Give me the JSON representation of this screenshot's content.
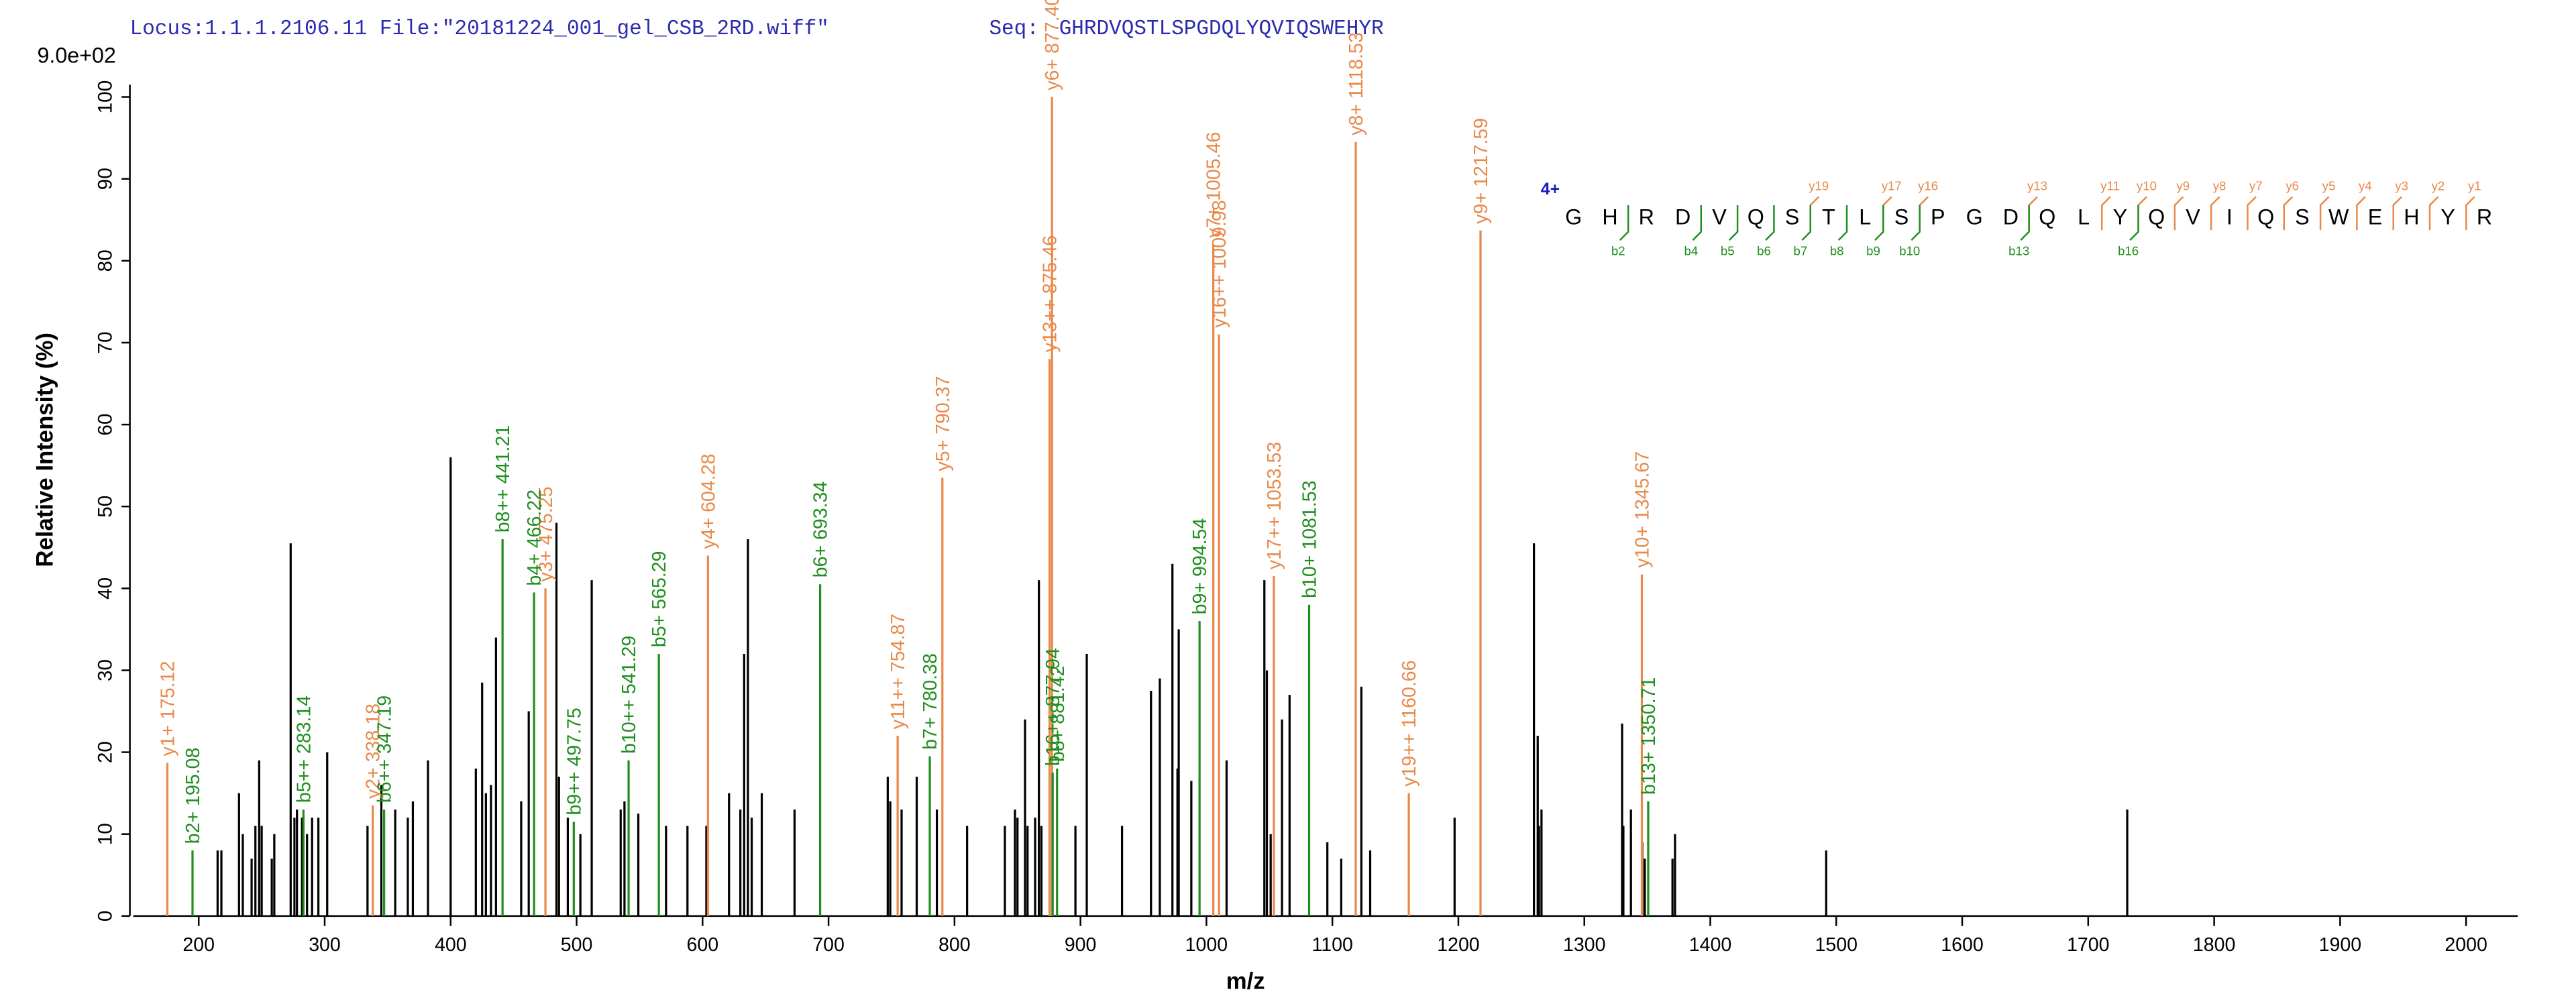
{
  "header": {
    "locus": "Locus:1.1.1.2106.11 File:\"20181224_001_gel_CSB_2RD.wiff\"",
    "seq_label": "Seq:",
    "sequence": "GHRDVQSTLSPGDQLYQVIQSWEHYR"
  },
  "chart_data": {
    "type": "spectrum",
    "y_scale_label": "9.0e+02",
    "xlabel": "m/z",
    "ylabel": "Relative Intensity (%)",
    "xlim": [
      148,
      2041
    ],
    "ylim": [
      0,
      101.5
    ],
    "xticks": [
      200,
      300,
      400,
      500,
      600,
      700,
      800,
      900,
      1000,
      1100,
      1200,
      1300,
      1400,
      1500,
      1600,
      1700,
      1800,
      1900,
      2000
    ],
    "yticks": [
      0,
      10,
      20,
      30,
      40,
      50,
      60,
      70,
      80,
      90,
      100
    ],
    "series": [
      {
        "color": "#000000",
        "x": [
          215,
          218,
          232,
          235,
          242,
          245,
          248,
          250,
          258,
          260,
          273,
          276,
          278,
          282,
          286,
          290,
          295,
          302,
          334,
          345,
          356,
          366,
          370,
          382,
          400,
          420,
          425,
          428,
          432,
          436,
          456,
          462,
          484,
          486,
          493,
          503,
          512,
          535,
          538,
          549,
          571,
          588,
          603,
          621,
          630,
          633,
          636,
          639,
          647,
          673,
          747,
          749,
          758,
          770,
          786,
          810,
          840,
          848,
          850,
          856,
          858,
          864,
          867,
          869,
          896,
          905,
          933,
          956,
          963,
          973,
          977,
          978,
          988,
          1016,
          1046,
          1048,
          1051,
          1060,
          1066,
          1096,
          1107,
          1123,
          1130,
          1197,
          1260,
          1263,
          1264,
          1266,
          1330,
          1331,
          1337,
          1346,
          1348,
          1370,
          1372,
          1492,
          1731
        ],
        "values": [
          8,
          8,
          15,
          10,
          7,
          11,
          19,
          11,
          7,
          10,
          45.5,
          12,
          13,
          12,
          10,
          12,
          12,
          20,
          11,
          16,
          13,
          12,
          14,
          19,
          56,
          18,
          28.5,
          15,
          16,
          34,
          14,
          25,
          48,
          17,
          12,
          10,
          41,
          13,
          14,
          12.5,
          11,
          11,
          11,
          15,
          13,
          32,
          46,
          12,
          15,
          13,
          17,
          14,
          13,
          17,
          13,
          11,
          11,
          13,
          12,
          24,
          11,
          12,
          41,
          11,
          11,
          32,
          11,
          27.5,
          29,
          43,
          18,
          35,
          16.5,
          19,
          41,
          30,
          10,
          24,
          27,
          9,
          7,
          28,
          8,
          12,
          45.5,
          22,
          11,
          13,
          23.5,
          11,
          13,
          9,
          7,
          7,
          10,
          8,
          13
        ]
      },
      {
        "color": "#e8894a",
        "x": [
          175.12,
          338.18,
          475.25,
          604.28,
          754.87,
          790.37,
          875.46,
          877.4,
          1005.46,
          1009.98,
          1053.53,
          1118.53,
          1160.66,
          1217.59,
          1345.67
        ],
        "values": [
          18.7,
          13.5,
          40,
          44,
          22,
          53.5,
          68,
          100,
          82,
          71,
          41.5,
          94.5,
          15,
          83.7,
          41.7
        ],
        "labels": [
          "y1+ 175.12",
          "y2+ 338.18",
          "y3+ 475.25",
          "y4+ 604.28",
          "y11++ 754.87",
          "y5+ 790.37",
          "y13++ 875.46",
          "y6+ 877.40",
          "y7+ 1005.46",
          "y16++ 1009.98",
          "y17++ 1053.53",
          "y8+ 1118.53",
          "y19++ 1160.66",
          "y9+ 1217.59",
          "y10+ 1345.67"
        ]
      },
      {
        "color": "#1f8f1f",
        "x": [
          195.08,
          283.14,
          347.19,
          441.21,
          466.22,
          497.75,
          541.29,
          565.29,
          693.34,
          780.38,
          877.94,
          881.42,
          994.54,
          1081.53,
          1350.71
        ],
        "values": [
          8,
          13,
          13,
          46,
          39.5,
          11.5,
          19,
          32,
          40.5,
          19.5,
          17.5,
          18,
          36,
          38,
          14
        ],
        "labels": [
          "b2+ 195.08",
          "b5++ 283.14",
          "b6++ 347.19",
          "b8++ 441.21",
          "b4+ 466.22",
          "b9++ 497.75",
          "b10++ 541.29",
          "b5+ 565.29",
          "b6+ 693.34",
          "b7+ 780.38",
          "b16++ 877.94",
          "b8+ 881.42",
          "b9+ 994.54",
          "b10+ 1081.53",
          "b13+ 1350.71"
        ]
      }
    ],
    "sequence_annotation": {
      "charge": "4+",
      "charge_color": "#1a1acc",
      "residues": [
        "G",
        "H",
        "R",
        "D",
        "V",
        "Q",
        "S",
        "T",
        "L",
        "S",
        "P",
        "G",
        "D",
        "Q",
        "L",
        "Y",
        "Q",
        "V",
        "I",
        "Q",
        "S",
        "W",
        "E",
        "H",
        "Y",
        "R"
      ],
      "y_color": "#e8894a",
      "b_color": "#1f8f1f",
      "y_marks": [
        null,
        null,
        null,
        null,
        null,
        null,
        "y19",
        null,
        "y17",
        "y16",
        null,
        null,
        "y13",
        null,
        "y11",
        "y10",
        "y9",
        "y8",
        "y7",
        "y6",
        "y5",
        "y4",
        "y3",
        "y2",
        "y1"
      ],
      "b_marks": [
        null,
        "b2",
        null,
        "b4",
        "b5",
        "b6",
        "b7",
        "b8",
        "b9",
        "b10",
        null,
        null,
        "b13",
        null,
        null,
        "b16",
        null,
        null,
        null,
        null,
        null,
        null,
        null,
        null,
        null
      ]
    }
  }
}
